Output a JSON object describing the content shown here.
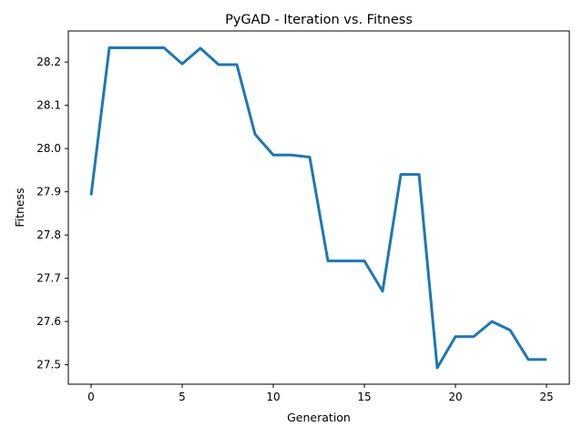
{
  "chart_data": {
    "type": "line",
    "title": "PyGAD - Iteration vs. Fitness",
    "xlabel": "Generation",
    "ylabel": "Fitness",
    "xlim": [
      -1.25,
      26.25
    ],
    "ylim": [
      27.455,
      28.272
    ],
    "xticks": [
      0,
      5,
      10,
      15,
      20,
      25
    ],
    "yticks": [
      27.5,
      27.6,
      27.7,
      27.8,
      27.9,
      28.0,
      28.1,
      28.2
    ],
    "ytick_labels": [
      "27.5",
      "27.6",
      "27.7",
      "27.8",
      "27.9",
      "28.0",
      "28.1",
      "28.2"
    ],
    "grid": false,
    "colors": {
      "line": "#1f77b4"
    },
    "series": [
      {
        "x": [
          0,
          1,
          2,
          3,
          4,
          5,
          6,
          7,
          8,
          9,
          10,
          11,
          12,
          13,
          14,
          15,
          16,
          17,
          18,
          19,
          20,
          21,
          22,
          23,
          24,
          25
        ],
        "values": [
          27.892,
          28.233,
          28.233,
          28.233,
          28.233,
          28.196,
          28.232,
          28.194,
          28.194,
          28.033,
          27.985,
          27.985,
          27.98,
          27.74,
          27.74,
          27.74,
          27.67,
          27.94,
          27.94,
          27.493,
          27.565,
          27.565,
          27.6,
          27.58,
          27.512,
          27.512
        ]
      }
    ]
  }
}
